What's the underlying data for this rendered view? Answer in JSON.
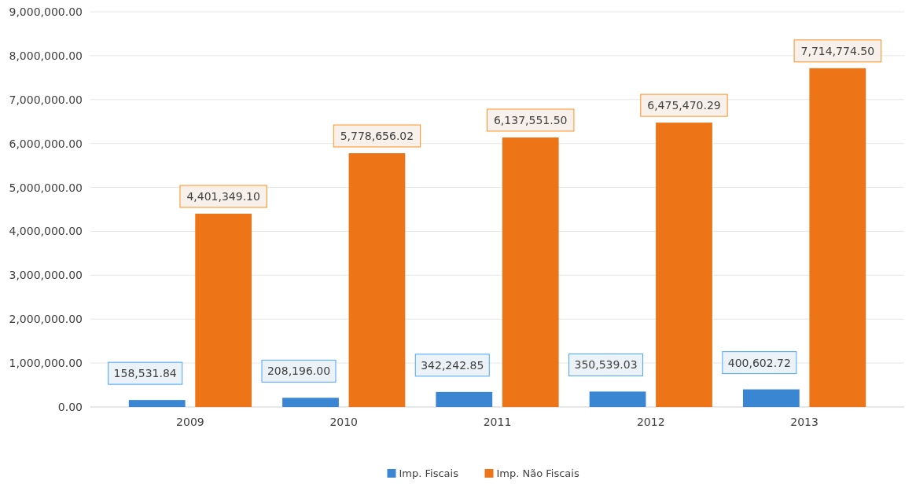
{
  "chart_data": {
    "type": "bar",
    "categories": [
      "2009",
      "2010",
      "2011",
      "2012",
      "2013"
    ],
    "series": [
      {
        "name": "Imp. Fiscais",
        "color": "#3b86d3",
        "values": [
          158531.84,
          208196.0,
          342242.85,
          350539.03,
          400602.72
        ],
        "value_labels": [
          "158,531.84",
          "208,196.00",
          "342,242.85",
          "350,539.03",
          "400,602.72"
        ]
      },
      {
        "name": "Imp. Não Fiscais",
        "color": "#ee7418",
        "values": [
          4401349.1,
          5778656.02,
          6137551.5,
          6475470.29,
          7714774.5
        ],
        "value_labels": [
          "4,401,349.10",
          "5,778,656.02",
          "6,137,551.50",
          "6,475,470.29",
          "7,714,774.50"
        ]
      }
    ],
    "ylim": [
      0,
      9000000
    ],
    "yticks": [
      {
        "value": 0,
        "label": "0.00"
      },
      {
        "value": 1000000,
        "label": "1,000,000.00"
      },
      {
        "value": 2000000,
        "label": "2,000,000.00"
      },
      {
        "value": 3000000,
        "label": "3,000,000.00"
      },
      {
        "value": 4000000,
        "label": "4,000,000.00"
      },
      {
        "value": 5000000,
        "label": "5,000,000.00"
      },
      {
        "value": 6000000,
        "label": "6,000,000.00"
      },
      {
        "value": 7000000,
        "label": "7,000,000.00"
      },
      {
        "value": 8000000,
        "label": "8,000,000.00"
      },
      {
        "value": 9000000,
        "label": "9,000,000.00"
      }
    ],
    "grid": "y",
    "legend": "bottom"
  }
}
